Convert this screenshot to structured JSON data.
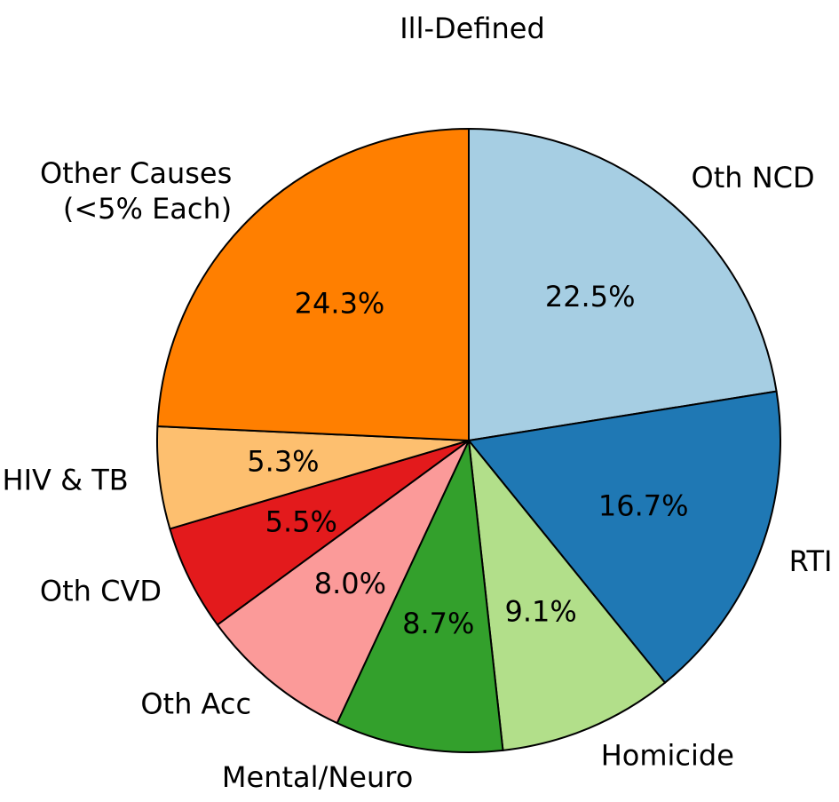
{
  "chart_data": {
    "type": "pie",
    "categories": [
      "Oth NCD",
      "RTI",
      "Homicide",
      "Mental/Neuro",
      "Oth Acc",
      "Oth CVD",
      "HIV & TB",
      "Other Causes\n(<5% Each)"
    ],
    "values": [
      22.5,
      16.7,
      9.1,
      8.7,
      8.0,
      5.5,
      5.3,
      24.3
    ],
    "value_labels": [
      "22.5%",
      "16.7%",
      "9.1%",
      "8.7%",
      "8.0%",
      "5.5%",
      "5.3%",
      "24.3%"
    ],
    "colors": [
      "#a6cee3",
      "#1f78b4",
      "#b2df8a",
      "#33a02c",
      "#fb9a99",
      "#e31a1c",
      "#fdbf6f",
      "#ff7f00"
    ],
    "start_angle": 90,
    "clockwise": true,
    "annotations": [
      "Ill-Defined"
    ]
  }
}
